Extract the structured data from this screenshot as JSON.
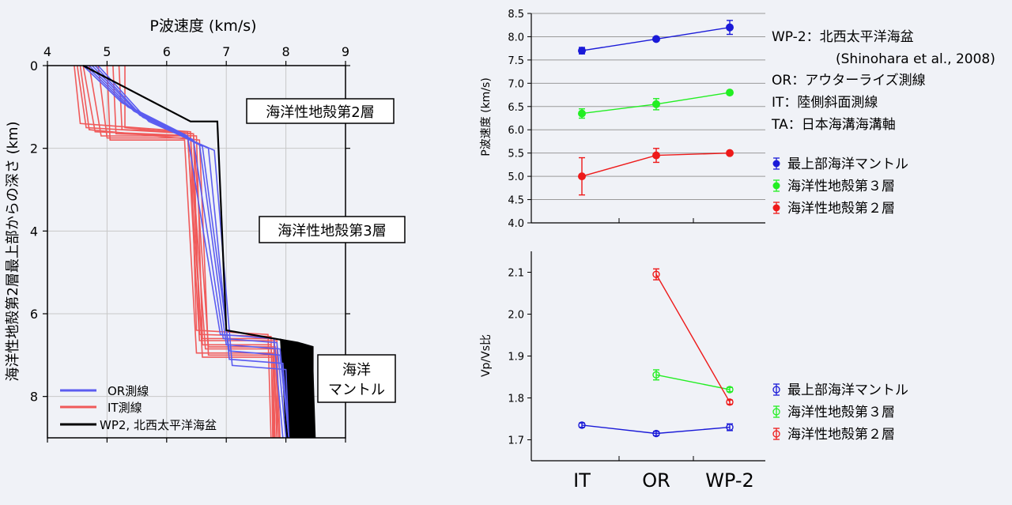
{
  "colors": {
    "background": "#f0f2f7",
    "or_line": "#5b5cf0",
    "it_line": "#f05a5a",
    "wp2_line": "#000000",
    "mantle": "#1a1ad8",
    "layer3": "#22ee22",
    "layer2": "#ee1a1a"
  },
  "chart_data": [
    {
      "type": "line",
      "title": "P波速度 (km/s)",
      "ylabel": "海洋性地殻第2層最上部からの深さ (km)",
      "xlim": [
        4,
        9
      ],
      "ylim": [
        9,
        0
      ],
      "xticks": [
        "4",
        "5",
        "6",
        "7",
        "8",
        "9"
      ],
      "yticks": [
        "0",
        "2",
        "4",
        "6",
        "8"
      ],
      "grid": true,
      "legend_position": "bottom-left",
      "legend": [
        "OR測線",
        "IT測線",
        "WP2, 北西太平洋海盆"
      ],
      "annotations": [
        "海洋性地殻第2層",
        "海洋性地殻第3層",
        "海洋",
        "マントル"
      ],
      "series": [
        {
          "name": "OR測線",
          "group": "OR",
          "profiles": [
            [
              [
                4.6,
                0
              ],
              [
                5.25,
                0.9
              ],
              [
                6.35,
                1.7
              ],
              [
                6.9,
                6.5
              ],
              [
                7.8,
                6.6
              ],
              [
                7.95,
                9.0
              ]
            ],
            [
              [
                4.65,
                0
              ],
              [
                5.35,
                1.0
              ],
              [
                6.45,
                1.8
              ],
              [
                6.95,
                6.6
              ],
              [
                7.85,
                6.7
              ],
              [
                8.0,
                9.0
              ]
            ],
            [
              [
                4.7,
                0
              ],
              [
                5.45,
                1.1
              ],
              [
                6.55,
                1.9
              ],
              [
                7.0,
                6.75
              ],
              [
                7.9,
                6.85
              ],
              [
                8.05,
                9.0
              ]
            ],
            [
              [
                4.75,
                0
              ],
              [
                5.55,
                1.2
              ],
              [
                6.6,
                1.95
              ],
              [
                7.05,
                6.9
              ],
              [
                7.9,
                7.0
              ],
              [
                8.05,
                9.0
              ]
            ],
            [
              [
                4.8,
                0
              ],
              [
                5.6,
                1.25
              ],
              [
                6.7,
                2.0
              ],
              [
                7.05,
                7.1
              ],
              [
                7.95,
                7.2
              ],
              [
                8.05,
                9.0
              ]
            ],
            [
              [
                4.85,
                0
              ],
              [
                5.7,
                1.35
              ],
              [
                6.8,
                2.05
              ],
              [
                7.1,
                7.25
              ],
              [
                8.0,
                7.35
              ],
              [
                8.05,
                9.0
              ]
            ]
          ]
        },
        {
          "name": "IT測線",
          "group": "IT",
          "profiles": [
            [
              [
                4.45,
                0
              ],
              [
                4.55,
                1.4
              ],
              [
                6.4,
                1.6
              ],
              [
                6.5,
                6.4
              ],
              [
                7.7,
                6.5
              ],
              [
                7.75,
                9.0
              ]
            ],
            [
              [
                4.5,
                0
              ],
              [
                4.65,
                1.5
              ],
              [
                6.45,
                1.65
              ],
              [
                6.55,
                6.5
              ],
              [
                7.75,
                6.55
              ],
              [
                7.78,
                9.0
              ]
            ],
            [
              [
                4.6,
                0
              ],
              [
                4.8,
                1.6
              ],
              [
                6.5,
                1.7
              ],
              [
                6.6,
                6.6
              ],
              [
                7.8,
                6.6
              ],
              [
                7.8,
                9.0
              ]
            ],
            [
              [
                4.7,
                0
              ],
              [
                4.9,
                1.7
              ],
              [
                6.35,
                1.7
              ],
              [
                6.6,
                6.75
              ],
              [
                7.75,
                6.75
              ],
              [
                7.8,
                9.0
              ]
            ],
            [
              [
                4.85,
                0
              ],
              [
                5.0,
                1.75
              ],
              [
                6.4,
                1.75
              ],
              [
                6.65,
                6.85
              ],
              [
                7.8,
                6.85
              ],
              [
                7.85,
                9.0
              ]
            ],
            [
              [
                5.0,
                0
              ],
              [
                5.05,
                1.8
              ],
              [
                6.3,
                1.8
              ],
              [
                6.5,
                6.95
              ],
              [
                7.78,
                6.95
              ],
              [
                7.82,
                9.0
              ]
            ],
            [
              [
                5.1,
                0
              ],
              [
                5.15,
                1.65
              ],
              [
                6.4,
                1.7
              ],
              [
                6.6,
                7.05
              ],
              [
                7.8,
                7.05
              ],
              [
                7.85,
                9.0
              ]
            ],
            [
              [
                5.2,
                0
              ],
              [
                5.25,
                1.55
              ],
              [
                6.35,
                1.6
              ],
              [
                6.55,
                6.65
              ],
              [
                7.85,
                6.65
              ],
              [
                7.85,
                9.0
              ]
            ],
            [
              [
                5.3,
                0
              ],
              [
                5.3,
                1.5
              ],
              [
                6.45,
                1.65
              ],
              [
                6.7,
                6.8
              ],
              [
                7.82,
                6.8
              ],
              [
                7.88,
                9.0
              ]
            ],
            [
              [
                4.55,
                0
              ],
              [
                4.7,
                1.55
              ],
              [
                6.55,
                1.8
              ],
              [
                6.7,
                7.0
              ],
              [
                7.85,
                7.0
              ],
              [
                7.9,
                9.0
              ]
            ]
          ]
        },
        {
          "name": "WP2, 北西太平洋海盆",
          "group": "WP2",
          "profile": [
            [
              4.6,
              0
            ],
            [
              5.0,
              0.3
            ],
            [
              6.4,
              1.35
            ],
            [
              6.85,
              1.35
            ],
            [
              7.0,
              6.4
            ],
            [
              8.2,
              6.7
            ],
            [
              8.45,
              6.8
            ],
            [
              8.45,
              9.0
            ]
          ],
          "band": [
            [
              7.9,
              6.6
            ],
            [
              8.45,
              6.8
            ],
            [
              8.5,
              9.0
            ],
            [
              8.0,
              9.0
            ]
          ]
        }
      ]
    },
    {
      "type": "scatter",
      "ylabel": "P波速度 (km/s)",
      "categories": [
        "IT",
        "OR",
        "WP-2"
      ],
      "ylim": [
        4.0,
        8.5
      ],
      "yticks": [
        "4.0",
        "4.5",
        "5.0",
        "5.5",
        "6.0",
        "6.5",
        "7.0",
        "7.5",
        "8.0",
        "8.5"
      ],
      "grid": true,
      "legend_position": "right",
      "series": [
        {
          "name": "最上部海洋マントル",
          "values": [
            7.7,
            7.95,
            8.2
          ],
          "errors": [
            0.07,
            0.04,
            0.15
          ],
          "marker": "filled"
        },
        {
          "name": "海洋性地殻第３層",
          "values": [
            6.35,
            6.55,
            6.8
          ],
          "errors": [
            0.1,
            0.12,
            0.04
          ],
          "marker": "filled"
        },
        {
          "name": "海洋性地殻第２層",
          "values": [
            5.0,
            5.45,
            5.5
          ],
          "errors": [
            0.4,
            0.15,
            0.03
          ],
          "marker": "filled"
        }
      ]
    },
    {
      "type": "scatter",
      "ylabel": "Vp/Vs比",
      "categories": [
        "IT",
        "OR",
        "WP-2"
      ],
      "ylim": [
        1.65,
        2.15
      ],
      "yticks": [
        "1.7",
        "1.8",
        "1.9",
        "2.0",
        "2.1"
      ],
      "grid": false,
      "legend_position": "right",
      "series": [
        {
          "name": "最上部海洋マントル",
          "values": [
            1.735,
            1.715,
            1.73
          ],
          "errors": [
            0.005,
            0.005,
            0.008
          ],
          "marker": "open"
        },
        {
          "name": "海洋性地殻第３層",
          "values": [
            null,
            1.855,
            1.82
          ],
          "errors": [
            null,
            0.012,
            0.005
          ],
          "marker": "open"
        },
        {
          "name": "海洋性地殻第２層",
          "values": [
            null,
            2.095,
            1.79
          ],
          "errors": [
            null,
            0.013,
            0.005
          ],
          "marker": "open"
        }
      ]
    }
  ],
  "source_legend": {
    "lines": [
      "WP-2：北西太平洋海盆",
      "(Shinohara et al., 2008)",
      "OR：アウターライズ測線",
      "IT：陸側斜面測線",
      "TA：日本海溝海溝軸"
    ]
  }
}
